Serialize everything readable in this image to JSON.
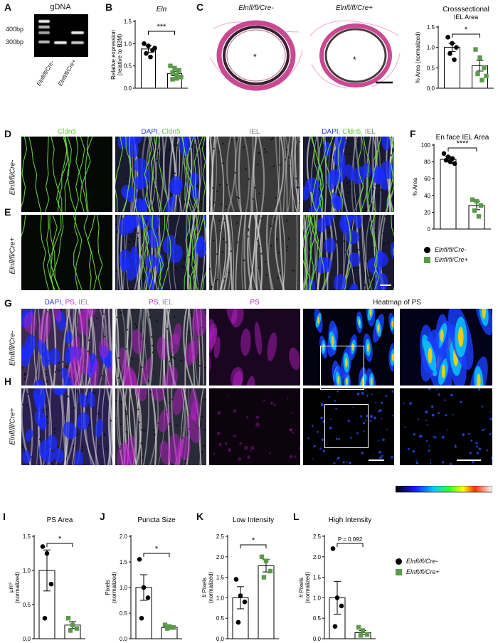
{
  "panels": {
    "A": {
      "letter": "A",
      "title": "gDNA",
      "marker_400": "400bp",
      "marker_300": "300bp",
      "lane1": "Elnfl/fl/Cre-",
      "lane2": "Elnfl/fl/Cre+"
    },
    "B": {
      "letter": "B",
      "title": "Eln",
      "ylabel": "Relative expression (relative to B2M)",
      "sig": "***"
    },
    "C": {
      "letter": "C",
      "img1": "Elnfl/fl/Cre-",
      "img2": "Elnfl/fl/Cre+",
      "lumen": "*",
      "chart_title": "Crosssectional IEL Area",
      "ylabel": "% Area (normalized)",
      "sig": "*"
    },
    "D": {
      "letter": "D",
      "row": "Elnfl/fl/Cre-",
      "col1": "Cldn5",
      "col2a": "DAPI, ",
      "col2b": "Cldn5",
      "col3": "IEL",
      "col4a": "DAPI, ",
      "col4b": "Cldn5",
      "col4c": ", IEL"
    },
    "E": {
      "letter": "E",
      "row": "Elnfl/fl/Cre+"
    },
    "F": {
      "letter": "F",
      "title": "En face IEL Area",
      "ylabel": "% Area",
      "sig": "****"
    },
    "G": {
      "letter": "G",
      "row": "Elnfl/fl/Cre-",
      "c1a": "DAPI, ",
      "c1b": "PS",
      "c1c": ", IEL",
      "c2a": "PS",
      "c2b": ", IEL",
      "c3": "PS",
      "c4": "Heatmap of PS"
    },
    "H": {
      "letter": "H",
      "row": "Elnfl/fl/Cre+"
    },
    "I": {
      "letter": "I",
      "title": "PS Area",
      "ylabel": "µm² (normalized)",
      "sig": "*"
    },
    "J": {
      "letter": "J",
      "title": "Puncta Size",
      "ylabel": "Pixels (normalized)",
      "sig": "*"
    },
    "K": {
      "letter": "K",
      "title": "Low Intensity",
      "ylabel": "# Pixels (normalized)",
      "sig": "*"
    },
    "L": {
      "letter": "L",
      "title": "High Intensity",
      "ylabel": "# Pixels (normalized)",
      "sig": "P = 0.092"
    }
  },
  "legend": {
    "ctrl": "Elnfl/fl/Cre-",
    "ko": "Elnfl/fl/Cre+"
  },
  "colors": {
    "ctrl": "#000000",
    "ko": "#5a9a4a",
    "cldn5": "#6fe040",
    "dapi": "#1a2cff",
    "ps": "#c020d0"
  },
  "chart_data": [
    {
      "id": "B",
      "type": "bar",
      "title": "Eln",
      "ylabel": "Relative expression (relative to B2M)",
      "ylim": [
        0,
        1.5
      ],
      "yticks": [
        0,
        0.5,
        1.0,
        1.5
      ],
      "series": [
        {
          "name": "Elnfl/fl/Cre-",
          "mean": 0.88,
          "sem": 0.08,
          "points": [
            1.0,
            0.95,
            0.85,
            0.78,
            0.7,
            0.9
          ]
        },
        {
          "name": "Elnfl/fl/Cre+",
          "mean": 0.33,
          "sem": 0.05,
          "points": [
            0.5,
            0.45,
            0.4,
            0.35,
            0.3,
            0.25,
            0.2,
            0.22
          ]
        }
      ]
    },
    {
      "id": "C",
      "type": "bar",
      "title": "Crosssectional IEL Area",
      "ylabel": "% Area (normalized)",
      "ylim": [
        0,
        1.5
      ],
      "yticks": [
        0,
        0.5,
        1.0,
        1.5
      ],
      "series": [
        {
          "name": "Elnfl/fl/Cre-",
          "mean": 1.0,
          "sem": 0.1,
          "points": [
            1.25,
            1.1,
            1.0,
            0.85,
            0.7
          ]
        },
        {
          "name": "Elnfl/fl/Cre+",
          "mean": 0.55,
          "sem": 0.13,
          "points": [
            0.95,
            0.75,
            0.5,
            0.35,
            0.2,
            0.3
          ]
        }
      ]
    },
    {
      "id": "F",
      "type": "bar",
      "title": "En face IEL Area",
      "ylabel": "% Area",
      "ylim": [
        0,
        100
      ],
      "yticks": [
        0,
        20,
        40,
        60,
        80,
        100
      ],
      "series": [
        {
          "name": "Elnfl/fl/Cre-",
          "mean": 83,
          "sem": 3,
          "points": [
            90,
            86,
            84,
            82,
            80,
            78
          ]
        },
        {
          "name": "Elnfl/fl/Cre+",
          "mean": 28,
          "sem": 5,
          "points": [
            35,
            33,
            28,
            22,
            15
          ]
        }
      ]
    },
    {
      "id": "I",
      "type": "bar",
      "title": "PS Area",
      "ylabel": "µm² (normalized)",
      "ylim": [
        0,
        1.5
      ],
      "yticks": [
        0,
        0.5,
        1.0,
        1.5
      ],
      "series": [
        {
          "name": "Elnfl/fl/Cre-",
          "mean": 1.0,
          "sem": 0.3,
          "points": [
            1.35,
            1.25,
            0.8,
            0.3
          ]
        },
        {
          "name": "Elnfl/fl/Cre+",
          "mean": 0.2,
          "sem": 0.05,
          "points": [
            0.3,
            0.2,
            0.15,
            0.12
          ]
        }
      ]
    },
    {
      "id": "J",
      "type": "bar",
      "title": "Puncta Size",
      "ylabel": "Pixels (normalized)",
      "ylim": [
        0,
        2.0
      ],
      "yticks": [
        0,
        0.5,
        1.0,
        1.5,
        2.0
      ],
      "series": [
        {
          "name": "Elnfl/fl/Cre-",
          "mean": 1.0,
          "sem": 0.25,
          "points": [
            1.55,
            1.0,
            0.8,
            0.4
          ]
        },
        {
          "name": "Elnfl/fl/Cre+",
          "mean": 0.22,
          "sem": 0.03,
          "points": [
            0.27,
            0.24,
            0.22,
            0.2
          ]
        }
      ]
    },
    {
      "id": "K",
      "type": "bar",
      "title": "Low Intensity",
      "ylabel": "# Pixels (normalized)",
      "ylim": [
        0,
        2.5
      ],
      "yticks": [
        0,
        0.5,
        1.0,
        1.5,
        2.0,
        2.5
      ],
      "series": [
        {
          "name": "Elnfl/fl/Cre-",
          "mean": 1.0,
          "sem": 0.27,
          "points": [
            1.45,
            1.05,
            0.9,
            0.4
          ]
        },
        {
          "name": "Elnfl/fl/Cre+",
          "mean": 1.78,
          "sem": 0.15,
          "points": [
            2.0,
            1.9,
            1.65,
            1.5
          ]
        }
      ]
    },
    {
      "id": "L",
      "type": "bar",
      "title": "High Intensity",
      "ylabel": "# Pixels (normalized)",
      "ylim": [
        0,
        2.5
      ],
      "yticks": [
        0,
        0.5,
        1.0,
        1.5,
        2.0,
        2.5
      ],
      "series": [
        {
          "name": "Elnfl/fl/Cre-",
          "mean": 1.0,
          "sem": 0.4,
          "points": [
            2.2,
            1.0,
            0.8,
            0.3
          ]
        },
        {
          "name": "Elnfl/fl/Cre+",
          "mean": 0.15,
          "sem": 0.05,
          "points": [
            0.28,
            0.2,
            0.1,
            0.08
          ]
        }
      ]
    }
  ]
}
